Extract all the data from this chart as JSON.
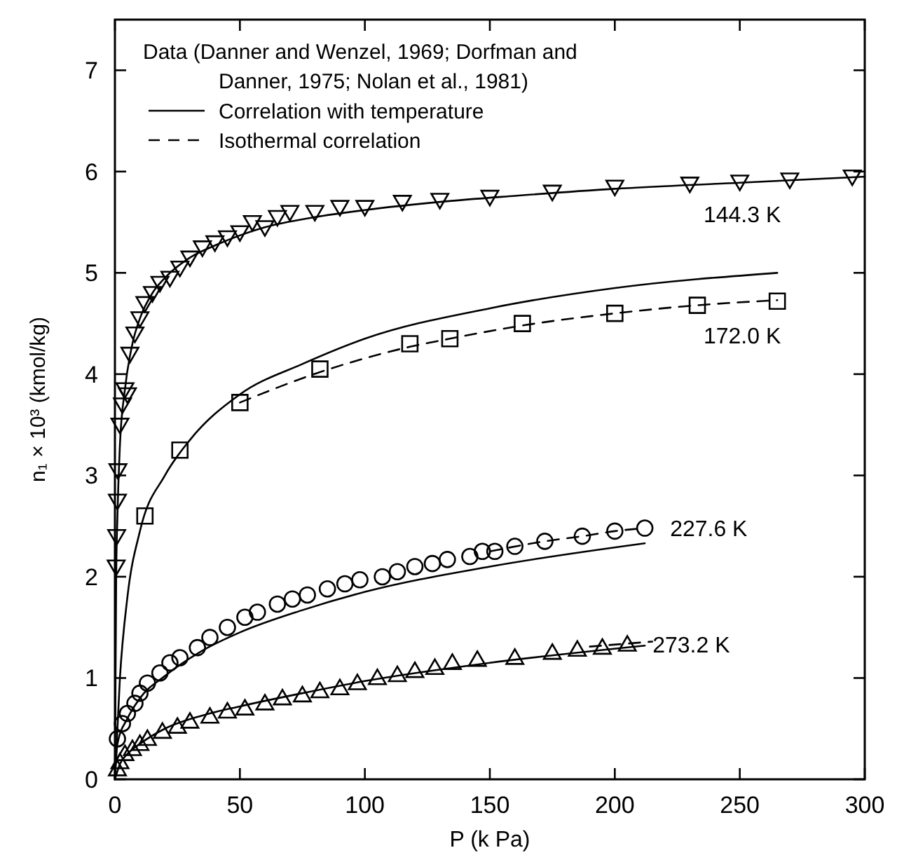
{
  "chart_data": {
    "type": "scatter",
    "xlabel": "P (k Pa)",
    "ylabel": "n₁ × 10³ (kmol/kg)",
    "legend_title": "Data (Danner and Wenzel, 1969; Dorfman and Danner, 1975; Nolan et al., 1981)",
    "legend": "top left",
    "grid": false,
    "xlim": [
      0,
      300
    ],
    "xticks": [
      0,
      50,
      100,
      150,
      200,
      250,
      300
    ],
    "ylim": [
      0,
      7.5
    ],
    "yticks": [
      0,
      1,
      2,
      3,
      4,
      5,
      6,
      7
    ],
    "series": [
      {
        "type": "line",
        "name": "Correlation with temperature",
        "color": "#000000",
        "line_style": "solid",
        "marker": "none",
        "x": [
          0,
          0.5,
          1,
          2,
          4,
          7,
          10,
          15,
          20,
          30,
          40,
          50,
          60,
          80,
          100,
          130,
          160,
          200,
          250,
          300
        ],
        "values": [
          0,
          2.0,
          2.6,
          3.3,
          3.85,
          4.3,
          4.55,
          4.8,
          4.95,
          5.15,
          5.27,
          5.37,
          5.45,
          5.55,
          5.62,
          5.7,
          5.76,
          5.83,
          5.89,
          5.95
        ]
      },
      {
        "type": "line",
        "name": "Isothermal correlation",
        "color": "#000000",
        "line_style": "dashed",
        "marker": "none",
        "x": [
          50,
          82,
          118,
          134,
          163,
          200,
          233,
          265
        ],
        "values": [
          3.72,
          4.02,
          4.27,
          4.35,
          4.48,
          4.6,
          4.68,
          4.73
        ]
      },
      {
        "type": "line",
        "color": "#000000",
        "line_style": "solid",
        "marker": "none",
        "x": [
          0,
          2,
          5,
          10,
          20,
          30,
          50,
          75,
          100,
          150,
          200,
          265
        ],
        "values": [
          0,
          1.0,
          1.8,
          2.45,
          3.0,
          3.35,
          3.8,
          4.1,
          4.35,
          4.65,
          4.85,
          5.0
        ]
      },
      {
        "type": "line",
        "color": "#000000",
        "line_style": "solid",
        "marker": "none",
        "x": [
          0,
          1,
          5,
          10,
          20,
          35,
          50,
          75,
          100,
          150,
          212
        ],
        "values": [
          0,
          0.35,
          0.6,
          0.8,
          1.02,
          1.27,
          1.45,
          1.67,
          1.85,
          2.1,
          2.33
        ]
      },
      {
        "type": "line",
        "color": "#000000",
        "line_style": "dashed",
        "marker": "none",
        "x": [
          150,
          172,
          187,
          200,
          212
        ],
        "values": [
          2.25,
          2.35,
          2.4,
          2.45,
          2.48
        ]
      },
      {
        "type": "line",
        "color": "#000000",
        "line_style": "solid",
        "marker": "none",
        "x": [
          0,
          2,
          5,
          10,
          20,
          35,
          50,
          75,
          100,
          150,
          212
        ],
        "values": [
          0,
          0.15,
          0.25,
          0.35,
          0.5,
          0.63,
          0.72,
          0.85,
          0.97,
          1.15,
          1.32
        ]
      },
      {
        "type": "line",
        "color": "#000000",
        "line_style": "dashed",
        "marker": "none",
        "x": [
          190,
          215
        ],
        "values": [
          1.31,
          1.36
        ]
      },
      {
        "name": "144.3 K",
        "color": "#000000",
        "marker": "triangle-down",
        "x": [
          0.5,
          0.7,
          1,
          1.2,
          2,
          3,
          4,
          5,
          6,
          8,
          10,
          12,
          15,
          18,
          22,
          26,
          30,
          35,
          40,
          45,
          50,
          55,
          60,
          65,
          70,
          80,
          90,
          100,
          115,
          130,
          150,
          175,
          200,
          230,
          250,
          270,
          295
        ],
        "values": [
          2.1,
          2.4,
          2.75,
          3.05,
          3.5,
          3.7,
          3.85,
          3.8,
          4.2,
          4.4,
          4.55,
          4.7,
          4.8,
          4.9,
          4.95,
          5.05,
          5.15,
          5.25,
          5.3,
          5.35,
          5.4,
          5.5,
          5.45,
          5.55,
          5.6,
          5.6,
          5.65,
          5.65,
          5.7,
          5.72,
          5.75,
          5.8,
          5.85,
          5.88,
          5.9,
          5.92,
          5.95
        ]
      },
      {
        "name": "172.0 K",
        "color": "#000000",
        "marker": "square",
        "x": [
          12,
          26,
          50,
          82,
          118,
          134,
          163,
          200,
          233,
          265
        ],
        "values": [
          2.6,
          3.25,
          3.72,
          4.05,
          4.3,
          4.35,
          4.5,
          4.6,
          4.68,
          4.72
        ]
      },
      {
        "name": "227.6 K",
        "color": "#000000",
        "marker": "circle",
        "x": [
          1,
          3,
          5,
          8,
          10,
          13,
          18,
          22,
          26,
          33,
          38,
          45,
          52,
          57,
          65,
          71,
          77,
          85,
          92,
          98,
          107,
          113,
          120,
          127,
          133,
          142,
          147,
          152,
          160,
          172,
          187,
          200,
          212
        ],
        "values": [
          0.4,
          0.55,
          0.65,
          0.75,
          0.85,
          0.95,
          1.05,
          1.15,
          1.2,
          1.3,
          1.4,
          1.5,
          1.6,
          1.65,
          1.73,
          1.78,
          1.82,
          1.88,
          1.93,
          1.97,
          2.0,
          2.05,
          2.1,
          2.13,
          2.17,
          2.2,
          2.25,
          2.25,
          2.3,
          2.35,
          2.4,
          2.45,
          2.48
        ]
      },
      {
        "name": "273.2 K",
        "color": "#000000",
        "marker": "triangle",
        "x": [
          1,
          2,
          4,
          7,
          10,
          13,
          19,
          25,
          30,
          38,
          45,
          52,
          60,
          67,
          75,
          82,
          90,
          97,
          105,
          113,
          120,
          128,
          135,
          145,
          160,
          175,
          185,
          195,
          205
        ],
        "values": [
          0.1,
          0.17,
          0.25,
          0.3,
          0.35,
          0.4,
          0.47,
          0.52,
          0.57,
          0.62,
          0.67,
          0.7,
          0.75,
          0.8,
          0.83,
          0.87,
          0.9,
          0.95,
          1.0,
          1.03,
          1.07,
          1.1,
          1.15,
          1.18,
          1.2,
          1.25,
          1.28,
          1.3,
          1.33
        ]
      }
    ]
  }
}
